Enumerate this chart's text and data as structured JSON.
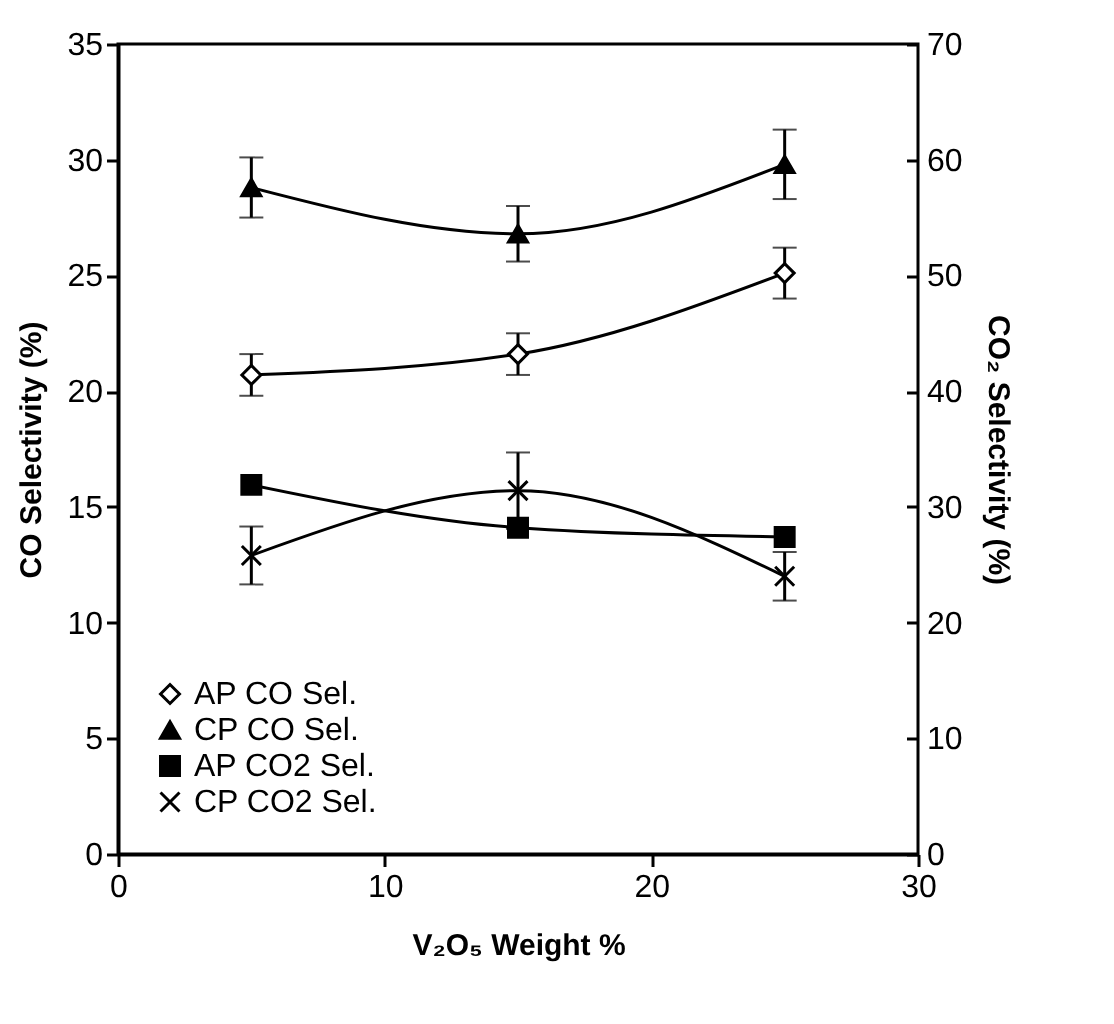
{
  "chart_data": {
    "type": "line",
    "xlabel": "V₂O₅ Weight %",
    "ylabel": "CO Selectivity (%)",
    "y2label": "CO₂ Selectivity (%)",
    "x": [
      5,
      15,
      25
    ],
    "series": [
      {
        "name": "AP CO Sel.",
        "color": "#000000",
        "marker": "diamond",
        "values": [
          20.7,
          21.6,
          25.1
        ],
        "errors": [
          0.9,
          0.9,
          1.1
        ]
      },
      {
        "name": "CP CO Sel.",
        "color": "#000000",
        "marker": "triangle",
        "values": [
          28.8,
          26.8,
          29.8
        ],
        "errors": [
          1.3,
          1.2,
          1.5
        ]
      },
      {
        "name": "AP CO2 Sel.",
        "color": "#000000",
        "marker": "square",
        "axis": "y2",
        "values": [
          31.9,
          28.2,
          27.4
        ]
      },
      {
        "name": "CP CO2 Sel.",
        "color": "#000000",
        "marker": "cross",
        "axis": "y2",
        "values": [
          25.8,
          31.4,
          24.0
        ],
        "errors": [
          2.5,
          3.3,
          2.1
        ]
      }
    ],
    "xlim": [
      0,
      30
    ],
    "xticks": [
      0,
      10,
      20,
      30
    ],
    "ylim": [
      0,
      35
    ],
    "yticks": [
      0,
      5,
      10,
      15,
      20,
      25,
      30,
      35
    ],
    "y2lim": [
      0,
      70
    ],
    "y2ticks": [
      0,
      10,
      20,
      30,
      40,
      50,
      60,
      70
    ],
    "legend": "bottom left",
    "grid": false,
    "line_style": "solid"
  }
}
